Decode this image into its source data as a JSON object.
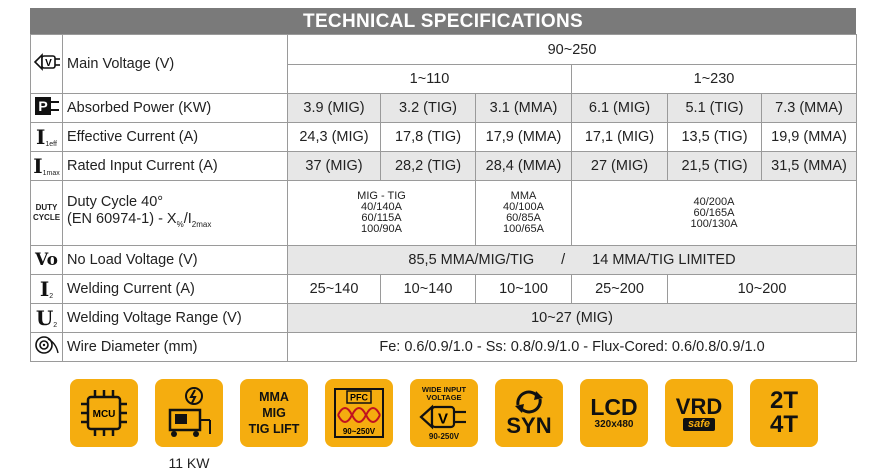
{
  "title": "TECHNICAL SPECIFICATIONS",
  "rows": {
    "main_voltage": {
      "icon": "voltage-plug-icon",
      "icon_text": "V",
      "label": "Main Voltage (V)",
      "range": "90~250",
      "sub_low": "1~110",
      "sub_high": "1~230"
    },
    "absorbed_power": {
      "icon": "power-plug-icon",
      "icon_text": "P",
      "label": "Absorbed Power (KW)",
      "values": [
        "3.9 (MIG)",
        "3.2 (TIG)",
        "3.1 (MMA)",
        "6.1 (MIG)",
        "5.1 (TIG)",
        "7.3 (MMA)"
      ]
    },
    "effective_current": {
      "icon": "effective-current-icon",
      "icon_text": "I",
      "icon_sub": "1eff",
      "label": "Effective Current (A)",
      "values": [
        "24,3 (MIG)",
        "17,8 (TIG)",
        "17,9 (MMA)",
        "17,1 (MIG)",
        "13,5 (TIG)",
        "19,9 (MMA)"
      ]
    },
    "rated_input": {
      "icon": "rated-current-icon",
      "icon_text": "I",
      "icon_sub": "1max",
      "label": "Rated Input Current (A)",
      "values": [
        "37 (MIG)",
        "28,2 (TIG)",
        "28,4 (MMA)",
        "27 (MIG)",
        "21,5 (TIG)",
        "31,5 (MMA)"
      ]
    },
    "duty_cycle": {
      "icon": "duty-cycle-icon",
      "icon_text_1": "DUTY",
      "icon_text_2": "CYCLE",
      "label_line1": "Duty Cycle 40°",
      "label_line2": "(EN 60974-1) - X",
      "label_sub1": "%",
      "label_mid": "/I",
      "label_sub2": "2max",
      "low_mig_tig": [
        "MIG - TIG",
        "40/140A",
        "60/115A",
        "100/90A"
      ],
      "low_mma": [
        "MMA",
        "40/100A",
        "60/85A",
        "100/65A"
      ],
      "high": [
        "40/200A",
        "60/165A",
        "100/130A"
      ]
    },
    "no_load": {
      "icon": "no-load-voltage-icon",
      "icon_text": "Vo",
      "label": "No Load Voltage (V)",
      "value_a": "85,5 MMA/MIG/TIG",
      "separator": "/",
      "value_b": "14 MMA/TIG LIMITED"
    },
    "welding_current": {
      "icon": "welding-current-icon",
      "icon_text": "I",
      "icon_sub": "2",
      "label": "Welding Current (A)",
      "values": [
        "25~140",
        "10~140",
        "10~100",
        "25~200",
        "10~200"
      ]
    },
    "welding_voltage": {
      "icon": "welding-voltage-icon",
      "icon_text": "U",
      "icon_sub": "2",
      "label": "Welding Voltage Range (V)",
      "value": "10~27 (MIG)"
    },
    "wire_diameter": {
      "icon": "wire-spool-icon",
      "label": "Wire Diameter (mm)",
      "value": "Fe: 0.6/0.9/1.0 - Ss: 0.8/0.9/1.0 - Flux-Cored: 0.6/0.8/0.9/1.0"
    }
  },
  "badges": {
    "mcu": "MCU",
    "generator_caption": "11 KW",
    "mma_lines": [
      "MMA",
      "MIG",
      "TIG LIFT"
    ],
    "pfc_top": "PFC",
    "pfc_bottom": "90~250V",
    "wide_top": "WIDE INPUT VOLTAGE",
    "wide_v": "V",
    "wide_bottom": "90-250V",
    "syn": "SYN",
    "lcd": "LCD",
    "lcd_res": "320x480",
    "vrd": "VRD",
    "vrd_safe": "safe",
    "t2": "2T",
    "t4": "4T"
  },
  "colors": {
    "header": "#7a7a7a",
    "shade": "#e7e7e7",
    "badge": "#f5ad0f",
    "border": "#9a9a9a"
  }
}
